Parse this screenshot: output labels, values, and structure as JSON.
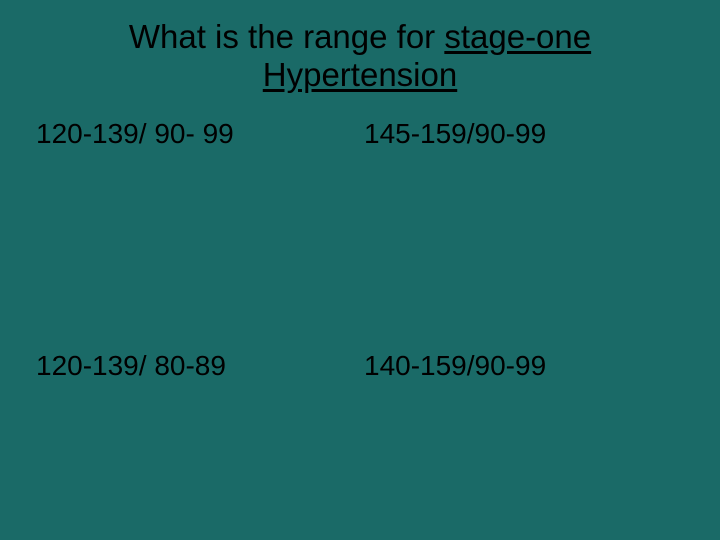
{
  "slide": {
    "background_color": "#1a6a67",
    "title": {
      "prefix": "What is the range for ",
      "underlined1": "stage-one",
      "underlined2": "Hypertension",
      "color": "#000000",
      "fontsize": 33
    },
    "options": {
      "color": "#000000",
      "fontsize": 28,
      "top_left": "120-139/ 90- 99",
      "top_right": "145-159/90-99",
      "bottom_left": "120-139/ 80-89",
      "bottom_right": "140-159/90-99"
    }
  }
}
